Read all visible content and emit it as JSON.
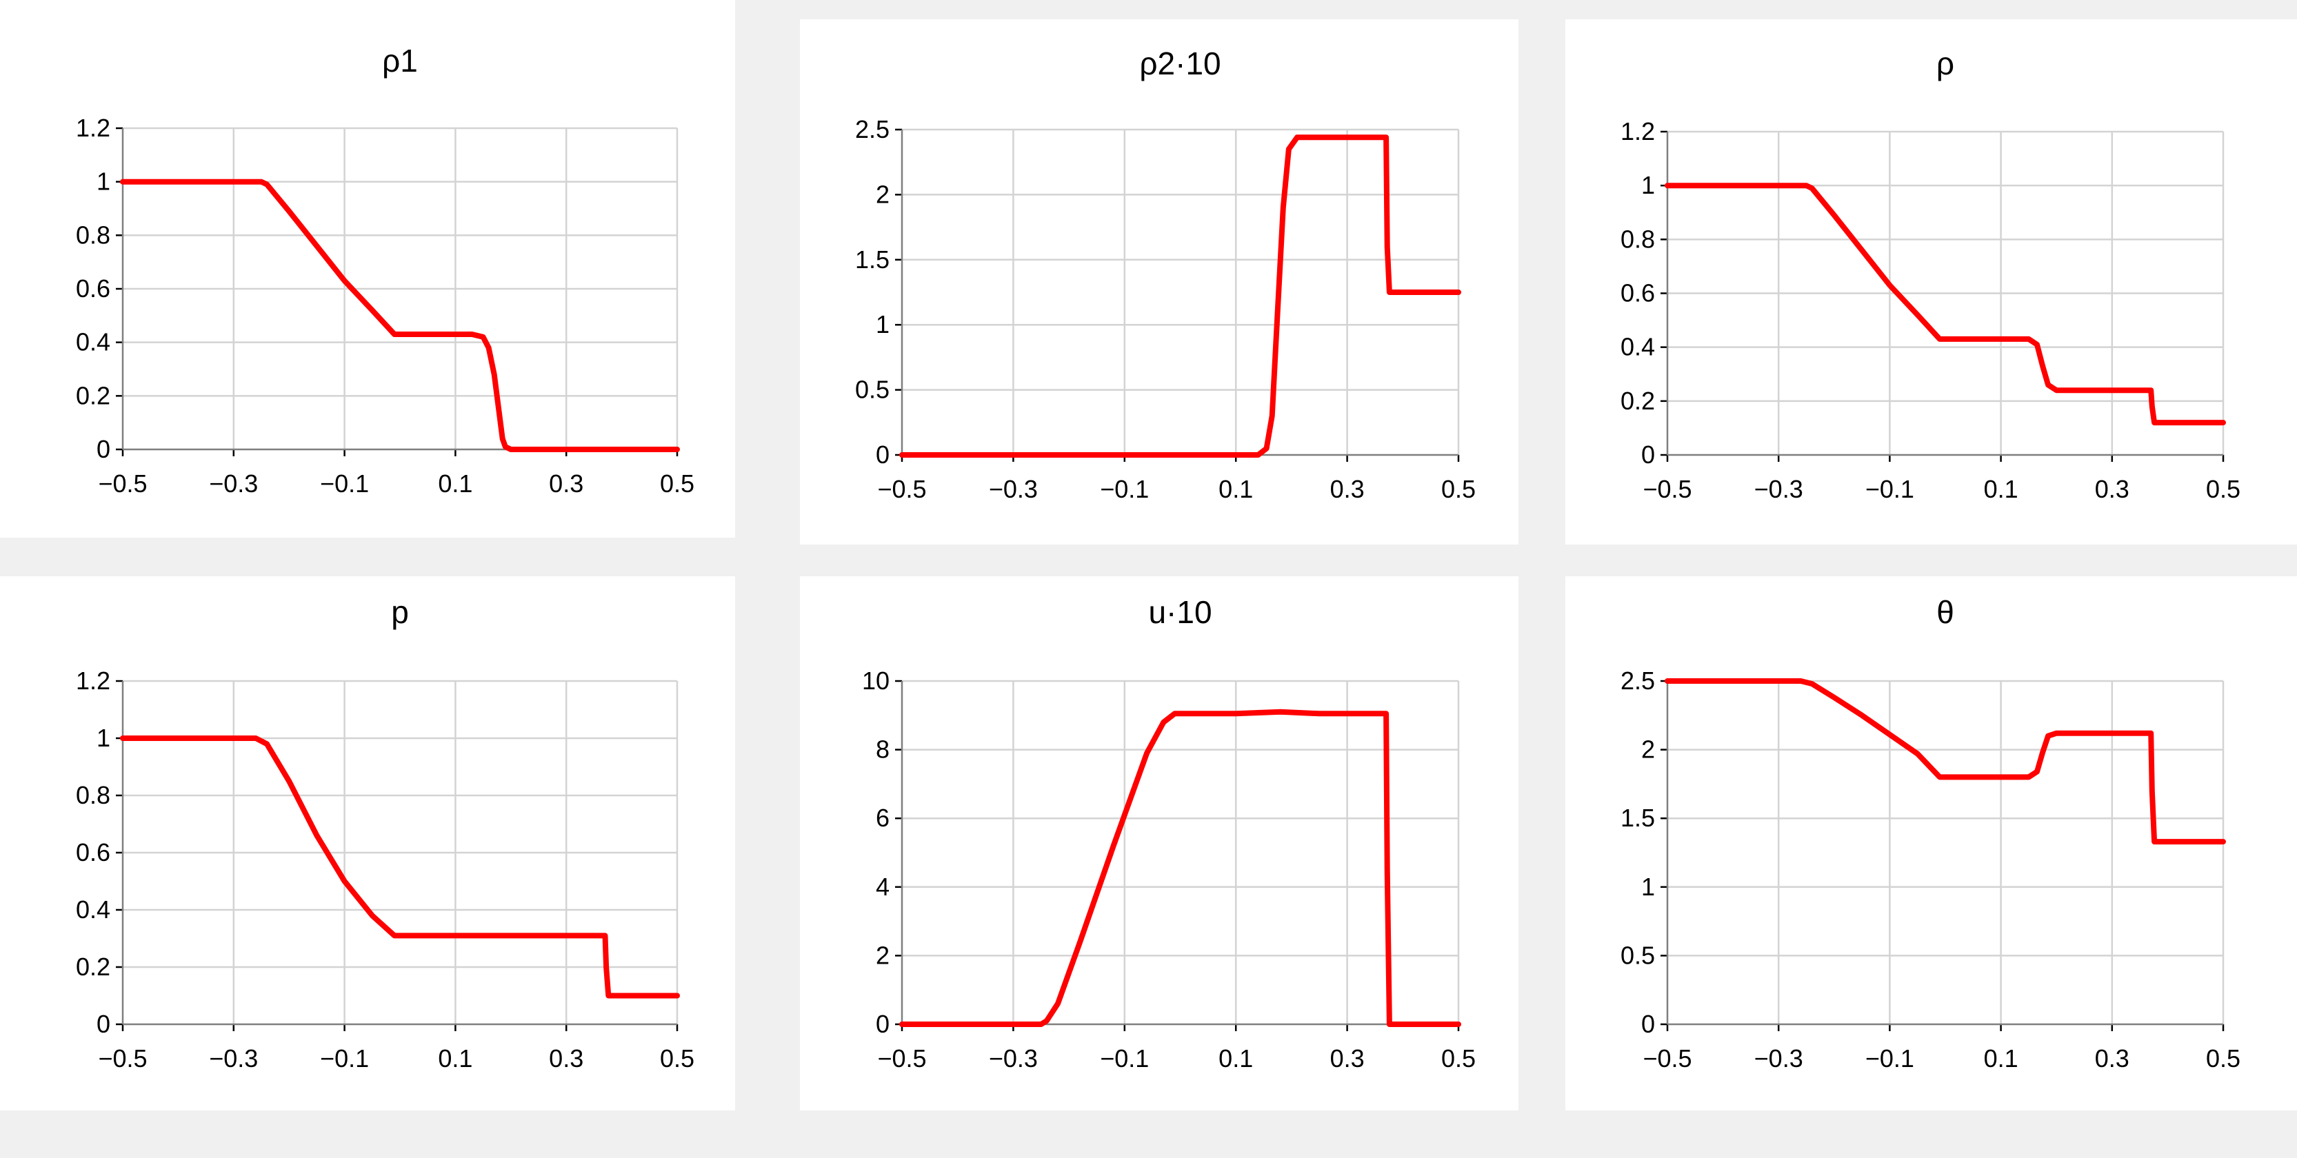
{
  "chart_data": [
    {
      "type": "line",
      "title": "ρ1",
      "xlabel": "",
      "ylabel": "",
      "xlim": [
        -0.5,
        0.5
      ],
      "ylim": [
        0,
        1.2
      ],
      "xticks": [
        "−0.5",
        "−0.3",
        "−0.1",
        "0.1",
        "0.3",
        "0.5"
      ],
      "yticks": [
        "0",
        "0.2",
        "0.4",
        "0.6",
        "0.8",
        "1",
        "1.2"
      ],
      "grid": true,
      "series": [
        {
          "color": "#ff0000",
          "x": [
            -0.5,
            -0.25,
            -0.24,
            -0.2,
            -0.15,
            -0.1,
            -0.05,
            -0.01,
            0.05,
            0.1,
            0.13,
            0.15,
            0.16,
            0.17,
            0.18,
            0.185,
            0.19,
            0.2,
            0.3,
            0.5
          ],
          "y": [
            1.0,
            1.0,
            0.99,
            0.89,
            0.76,
            0.63,
            0.52,
            0.43,
            0.43,
            0.43,
            0.43,
            0.42,
            0.38,
            0.28,
            0.12,
            0.04,
            0.01,
            0.0,
            0.0,
            0.0
          ]
        }
      ]
    },
    {
      "type": "line",
      "title": "ρ2·10",
      "xlabel": "",
      "ylabel": "",
      "xlim": [
        -0.5,
        0.5
      ],
      "ylim": [
        0,
        2.5
      ],
      "xticks": [
        "−0.5",
        "−0.3",
        "−0.1",
        "0.1",
        "0.3",
        "0.5"
      ],
      "yticks": [
        "0",
        "0.5",
        "1",
        "1.5",
        "2",
        "2.5"
      ],
      "grid": true,
      "series": [
        {
          "color": "#ff0000",
          "x": [
            -0.5,
            0.1,
            0.14,
            0.155,
            0.165,
            0.175,
            0.185,
            0.195,
            0.21,
            0.37,
            0.372,
            0.376,
            0.5
          ],
          "y": [
            0.0,
            0.0,
            0.0,
            0.05,
            0.3,
            1.1,
            1.9,
            2.35,
            2.44,
            2.44,
            1.6,
            1.25,
            1.25
          ]
        }
      ]
    },
    {
      "type": "line",
      "title": "ρ",
      "xlabel": "",
      "ylabel": "",
      "xlim": [
        -0.5,
        0.5
      ],
      "ylim": [
        0,
        1.2
      ],
      "xticks": [
        "−0.5",
        "−0.3",
        "−0.1",
        "0.1",
        "0.3",
        "0.5"
      ],
      "yticks": [
        "0",
        "0.2",
        "0.4",
        "0.6",
        "0.8",
        "1",
        "1.2"
      ],
      "grid": true,
      "series": [
        {
          "color": "#ff0000",
          "x": [
            -0.5,
            -0.25,
            -0.24,
            -0.2,
            -0.15,
            -0.1,
            -0.05,
            -0.01,
            0.05,
            0.15,
            0.165,
            0.175,
            0.185,
            0.2,
            0.37,
            0.372,
            0.376,
            0.5
          ],
          "y": [
            1.0,
            1.0,
            0.99,
            0.89,
            0.76,
            0.63,
            0.52,
            0.43,
            0.43,
            0.43,
            0.41,
            0.33,
            0.26,
            0.24,
            0.24,
            0.18,
            0.12,
            0.12
          ]
        }
      ]
    },
    {
      "type": "line",
      "title": "p",
      "xlabel": "",
      "ylabel": "",
      "xlim": [
        -0.5,
        0.5
      ],
      "ylim": [
        0,
        1.2
      ],
      "xticks": [
        "−0.5",
        "−0.3",
        "−0.1",
        "0.1",
        "0.3",
        "0.5"
      ],
      "yticks": [
        "0",
        "0.2",
        "0.4",
        "0.6",
        "0.8",
        "1",
        "1.2"
      ],
      "grid": true,
      "series": [
        {
          "color": "#ff0000",
          "x": [
            -0.5,
            -0.26,
            -0.24,
            -0.2,
            -0.15,
            -0.1,
            -0.05,
            -0.01,
            0.1,
            0.37,
            0.372,
            0.376,
            0.5
          ],
          "y": [
            1.0,
            1.0,
            0.98,
            0.85,
            0.66,
            0.5,
            0.38,
            0.31,
            0.31,
            0.31,
            0.2,
            0.1,
            0.1
          ]
        }
      ]
    },
    {
      "type": "line",
      "title": "u·10",
      "xlabel": "",
      "ylabel": "",
      "xlim": [
        -0.5,
        0.5
      ],
      "ylim": [
        0,
        10
      ],
      "xticks": [
        "−0.5",
        "−0.3",
        "−0.1",
        "0.1",
        "0.3",
        "0.5"
      ],
      "yticks": [
        "0",
        "2",
        "4",
        "6",
        "8",
        "10"
      ],
      "grid": true,
      "series": [
        {
          "color": "#ff0000",
          "x": [
            -0.5,
            -0.25,
            -0.24,
            -0.22,
            -0.18,
            -0.12,
            -0.06,
            -0.03,
            -0.01,
            0.1,
            0.18,
            0.25,
            0.37,
            0.372,
            0.376,
            0.5
          ],
          "y": [
            0.0,
            0.0,
            0.1,
            0.6,
            2.4,
            5.2,
            7.9,
            8.8,
            9.05,
            9.05,
            9.1,
            9.05,
            9.05,
            4.5,
            0.0,
            0.0
          ]
        }
      ]
    },
    {
      "type": "line",
      "title": "θ",
      "xlabel": "",
      "ylabel": "",
      "xlim": [
        -0.5,
        0.5
      ],
      "ylim": [
        0,
        2.5
      ],
      "xticks": [
        "−0.5",
        "−0.3",
        "−0.1",
        "0.1",
        "0.3",
        "0.5"
      ],
      "yticks": [
        "0",
        "0.5",
        "1",
        "1.5",
        "2",
        "2.5"
      ],
      "grid": true,
      "series": [
        {
          "color": "#ff0000",
          "x": [
            -0.5,
            -0.26,
            -0.24,
            -0.2,
            -0.15,
            -0.1,
            -0.05,
            -0.01,
            0.1,
            0.15,
            0.165,
            0.175,
            0.185,
            0.2,
            0.37,
            0.372,
            0.376,
            0.5
          ],
          "y": [
            2.5,
            2.5,
            2.48,
            2.38,
            2.25,
            2.11,
            1.97,
            1.8,
            1.8,
            1.8,
            1.84,
            1.98,
            2.1,
            2.12,
            2.12,
            1.7,
            1.33,
            1.33
          ]
        }
      ]
    }
  ]
}
